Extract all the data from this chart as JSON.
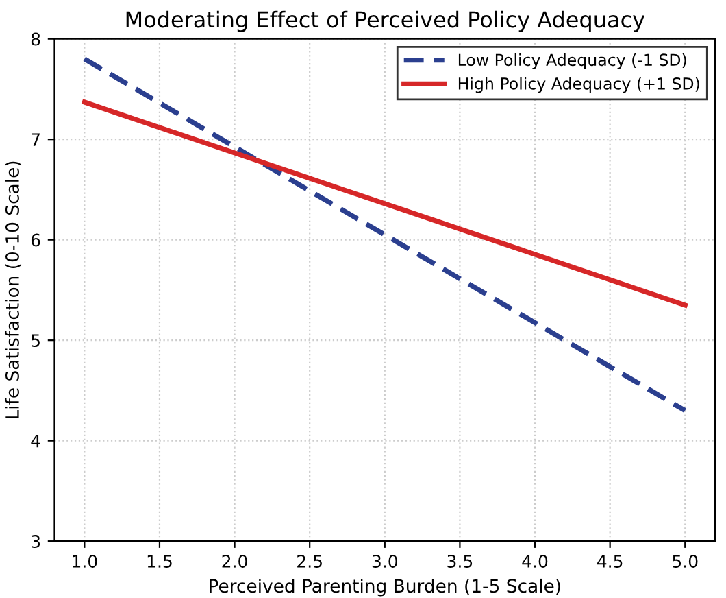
{
  "chart_data": {
    "type": "line",
    "title": "Moderating Effect of Perceived Policy Adequacy",
    "xlabel": "Perceived Parenting Burden (1-5 Scale)",
    "ylabel": "Life Satisfaction (0-10 Scale)",
    "x": [
      1.0,
      5.0
    ],
    "series": [
      {
        "name": "Low Policy Adequacy (-1 SD)",
        "color": "#2b3f8f",
        "values": [
          7.8,
          4.3
        ],
        "line_style": "dashed"
      },
      {
        "name": "High Policy Adequacy (+1 SD)",
        "color": "#d62728",
        "values": [
          7.37,
          5.35
        ],
        "line_style": "solid"
      }
    ],
    "xlim": [
      0.8,
      5.2
    ],
    "ylim": [
      3,
      8
    ],
    "xticks": [
      {
        "value": 1.0,
        "label": "1.0"
      },
      {
        "value": 1.5,
        "label": "1.5"
      },
      {
        "value": 2.0,
        "label": "2.0"
      },
      {
        "value": 2.5,
        "label": "2.5"
      },
      {
        "value": 3.0,
        "label": "3.0"
      },
      {
        "value": 3.5,
        "label": "3.5"
      },
      {
        "value": 4.0,
        "label": "4.0"
      },
      {
        "value": 4.5,
        "label": "4.5"
      },
      {
        "value": 5.0,
        "label": "5.0"
      }
    ],
    "yticks": [
      3,
      4,
      5,
      6,
      7,
      8
    ],
    "grid": true,
    "legend": "top right",
    "marker": "none"
  }
}
